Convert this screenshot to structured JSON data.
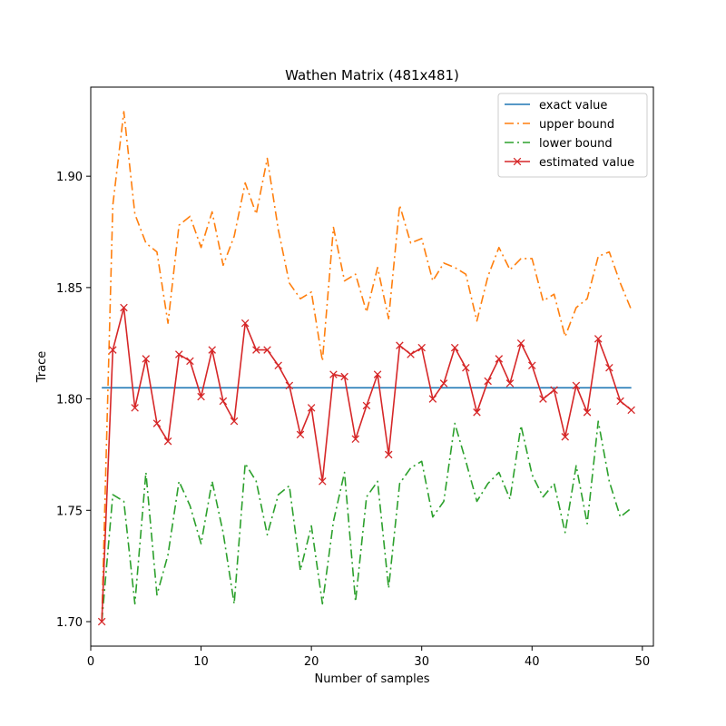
{
  "chart_data": {
    "type": "line",
    "title": "Wathen Matrix (481x481)",
    "xlabel": "Number of samples",
    "ylabel": "Trace",
    "xlim": [
      0.0,
      51.0
    ],
    "ylim": [
      1.689,
      1.94
    ],
    "xticks": [
      0,
      10,
      20,
      30,
      40,
      50
    ],
    "yticks": [
      1.7,
      1.75,
      1.8,
      1.85,
      1.9
    ],
    "xtick_labels": [
      "0",
      "10",
      "20",
      "30",
      "40",
      "50"
    ],
    "ytick_labels": [
      "1.70",
      "1.75",
      "1.80",
      "1.85",
      "1.90"
    ],
    "grid": false,
    "legend_position": "top-right",
    "x": [
      1,
      2,
      3,
      4,
      5,
      6,
      7,
      8,
      9,
      10,
      11,
      12,
      13,
      14,
      15,
      16,
      17,
      18,
      19,
      20,
      21,
      22,
      23,
      24,
      25,
      26,
      27,
      28,
      29,
      30,
      31,
      32,
      33,
      34,
      35,
      36,
      37,
      38,
      39,
      40,
      41,
      42,
      43,
      44,
      45,
      46,
      47,
      48,
      49
    ],
    "series": [
      {
        "name": "exact value",
        "color": "#1f77b4",
        "linestyle": "solid",
        "marker": "none",
        "values": [
          1.805,
          1.805,
          1.805,
          1.805,
          1.805,
          1.805,
          1.805,
          1.805,
          1.805,
          1.805,
          1.805,
          1.805,
          1.805,
          1.805,
          1.805,
          1.805,
          1.805,
          1.805,
          1.805,
          1.805,
          1.805,
          1.805,
          1.805,
          1.805,
          1.805,
          1.805,
          1.805,
          1.805,
          1.805,
          1.805,
          1.805,
          1.805,
          1.805,
          1.805,
          1.805,
          1.805,
          1.805,
          1.805,
          1.805,
          1.805,
          1.805,
          1.805,
          1.805,
          1.805,
          1.805,
          1.805,
          1.805,
          1.805,
          1.805
        ]
      },
      {
        "name": "upper bound",
        "color": "#ff7f0e",
        "linestyle": "dashdot",
        "marker": "none",
        "values": [
          1.7,
          1.887,
          1.929,
          1.883,
          1.87,
          1.866,
          1.834,
          1.878,
          1.882,
          1.868,
          1.884,
          1.86,
          1.873,
          1.897,
          1.883,
          1.908,
          1.876,
          1.852,
          1.845,
          1.848,
          1.817,
          1.877,
          1.853,
          1.856,
          1.839,
          1.859,
          1.836,
          1.887,
          1.87,
          1.872,
          1.853,
          1.861,
          1.859,
          1.856,
          1.835,
          1.855,
          1.868,
          1.858,
          1.863,
          1.863,
          1.844,
          1.847,
          1.828,
          1.841,
          1.845,
          1.864,
          1.866,
          1.852,
          1.84
        ]
      },
      {
        "name": "lower bound",
        "color": "#2ca02c",
        "linestyle": "dashdot",
        "marker": "none",
        "values": [
          1.7,
          1.757,
          1.754,
          1.708,
          1.767,
          1.712,
          1.73,
          1.763,
          1.752,
          1.735,
          1.763,
          1.74,
          1.708,
          1.771,
          1.763,
          1.739,
          1.757,
          1.761,
          1.723,
          1.743,
          1.708,
          1.745,
          1.767,
          1.709,
          1.756,
          1.763,
          1.715,
          1.762,
          1.769,
          1.772,
          1.747,
          1.754,
          1.789,
          1.772,
          1.754,
          1.762,
          1.767,
          1.755,
          1.788,
          1.766,
          1.756,
          1.762,
          1.74,
          1.77,
          1.744,
          1.79,
          1.763,
          1.747,
          1.751
        ]
      },
      {
        "name": "estimated value",
        "color": "#d62728",
        "linestyle": "solid",
        "marker": "x",
        "values": [
          1.7,
          1.822,
          1.841,
          1.796,
          1.818,
          1.789,
          1.781,
          1.82,
          1.817,
          1.801,
          1.822,
          1.799,
          1.79,
          1.834,
          1.822,
          1.822,
          1.815,
          1.806,
          1.784,
          1.796,
          1.763,
          1.811,
          1.81,
          1.782,
          1.797,
          1.811,
          1.775,
          1.824,
          1.82,
          1.823,
          1.8,
          1.807,
          1.823,
          1.814,
          1.794,
          1.808,
          1.818,
          1.807,
          1.825,
          1.815,
          1.8,
          1.804,
          1.783,
          1.806,
          1.794,
          1.827,
          1.814,
          1.799,
          1.795
        ]
      }
    ]
  }
}
